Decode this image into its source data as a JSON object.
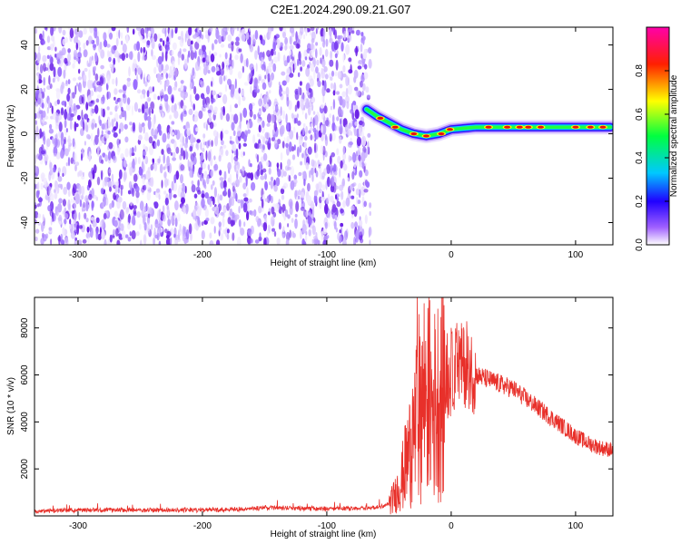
{
  "title": "C2E1.2024.290.09.21.G07",
  "chart_data": [
    {
      "type": "heatmap",
      "xlabel": "Height of straight line (km)",
      "ylabel": "Frequency (Hz)",
      "xlim": [
        -335,
        130
      ],
      "ylim": [
        -50,
        48
      ],
      "xticks": [
        -300,
        -200,
        -100,
        0,
        100
      ],
      "yticks": [
        -40,
        -20,
        0,
        20,
        40
      ],
      "colorbar": {
        "label": "Normalized spectral amplitude",
        "range": [
          0,
          1
        ],
        "ticks": [
          0.0,
          0.2,
          0.4,
          0.6,
          0.8
        ],
        "colors": [
          "#ffffff",
          "#7f00ff",
          "#0000ff",
          "#00ffff",
          "#00ff00",
          "#ffff00",
          "#ff0000",
          "#ff00aa"
        ]
      },
      "signal_track": {
        "x": [
          -68,
          -60,
          -50,
          -40,
          -30,
          -20,
          -10,
          0,
          20,
          50,
          80,
          100,
          128
        ],
        "y": [
          11,
          8,
          5,
          2,
          0,
          -1,
          0,
          2,
          3,
          3,
          3,
          3,
          3
        ]
      },
      "noise_region_x": [
        -335,
        -65
      ]
    },
    {
      "type": "line",
      "xlabel": "Height of straight line (km)",
      "ylabel": "SNR (10 * v/v)",
      "xlim": [
        -335,
        130
      ],
      "ylim": [
        0,
        9300
      ],
      "xticks": [
        -300,
        -200,
        -100,
        0,
        100
      ],
      "yticks": [
        2000,
        4000,
        6000,
        8000
      ],
      "color": "#e8302a",
      "series": [
        {
          "x": [
            -335,
            -300,
            -250,
            -200,
            -160,
            -150,
            -100,
            -60,
            -50,
            -45,
            -40,
            -35,
            -30,
            -25,
            -20,
            -15,
            -10,
            -5,
            0,
            5,
            10,
            15,
            20,
            30,
            40,
            50,
            60,
            70,
            80,
            90,
            100,
            110,
            120,
            130
          ],
          "y": [
            200,
            250,
            250,
            260,
            300,
            350,
            300,
            350,
            500,
            900,
            1500,
            2500,
            3500,
            4800,
            5500,
            4500,
            5200,
            5500,
            6000,
            6500,
            6400,
            6300,
            6000,
            5800,
            5600,
            5400,
            5000,
            4600,
            4200,
            3800,
            3400,
            3100,
            2900,
            2800
          ]
        }
      ]
    }
  ]
}
